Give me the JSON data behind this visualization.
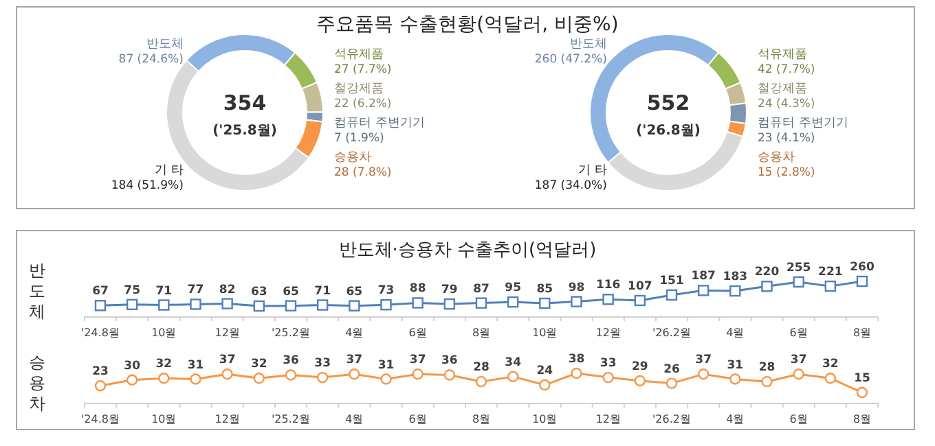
{
  "chart_data": [
    {
      "type": "donut",
      "title": "주요품목 수출현황(억달러, 비중%)",
      "categories": [
        "반도체",
        "석유제품",
        "철강제품",
        "컴퓨터 주변기기",
        "승용차",
        "기 타"
      ],
      "values": [
        87,
        27,
        22,
        7,
        28,
        184
      ],
      "colors": [
        "#8db3e2",
        "#9bbb59",
        "#c4bd97",
        "#7f96b2",
        "#f79646",
        "#d9d9d9"
      ],
      "value_labels": [
        "87 (24.6%)",
        "27 (7.7%)",
        "22 (6.2%)",
        "7 (1.9%)",
        "28 (7.8%)",
        "184 (51.9%)"
      ],
      "annotations": [
        "354",
        "('25.8월)"
      ]
    },
    {
      "type": "donut",
      "categories": [
        "반도체",
        "석유제품",
        "철강제품",
        "컴퓨터 주변기기",
        "승용차",
        "기 타"
      ],
      "values": [
        260,
        42,
        24,
        23,
        15,
        187
      ],
      "colors": [
        "#8db3e2",
        "#9bbb59",
        "#c4bd97",
        "#7f96b2",
        "#f79646",
        "#d9d9d9"
      ],
      "value_labels": [
        "260 (47.2%)",
        "42 (7.7%)",
        "24 (4.3%)",
        "23 (4.1%)",
        "15 (2.8%)",
        "187 (34.0%)"
      ],
      "annotations": [
        "552",
        "('26.8월)"
      ]
    },
    {
      "type": "line",
      "title": "반도체·승용차 수출추이(억달러)",
      "ylabel": "반도체",
      "marker": "square",
      "data_labels": true,
      "categories": [
        "'24.8월",
        null,
        "10월",
        null,
        "12월",
        null,
        "'25.2월",
        null,
        "4월",
        null,
        "6월",
        null,
        "8월",
        null,
        "10월",
        null,
        "12월",
        null,
        "'26.2월",
        null,
        "4월",
        null,
        "6월",
        null,
        "8월"
      ],
      "series": [
        {
          "color": "#4f81bd",
          "values": [
            67,
            75,
            71,
            77,
            82,
            63,
            65,
            71,
            65,
            73,
            88,
            79,
            87,
            95,
            85,
            98,
            116,
            107,
            151,
            187,
            183,
            220,
            255,
            221,
            260
          ]
        }
      ]
    },
    {
      "type": "line",
      "ylabel": "승용차",
      "marker": "circle",
      "data_labels": true,
      "categories": [
        "'24.8월",
        null,
        "10월",
        null,
        "12월",
        null,
        "'25.2월",
        null,
        "4월",
        null,
        "6월",
        null,
        "8월",
        null,
        "10월",
        null,
        "12월",
        null,
        "'26.2월",
        null,
        "4월",
        null,
        "6월",
        null,
        "8월"
      ],
      "series": [
        {
          "color": "#f79646",
          "values": [
            23,
            30,
            32,
            31,
            37,
            32,
            36,
            33,
            37,
            31,
            37,
            36,
            28,
            34,
            24,
            38,
            33,
            29,
            26,
            37,
            31,
            28,
            37,
            32,
            15
          ]
        }
      ]
    }
  ]
}
